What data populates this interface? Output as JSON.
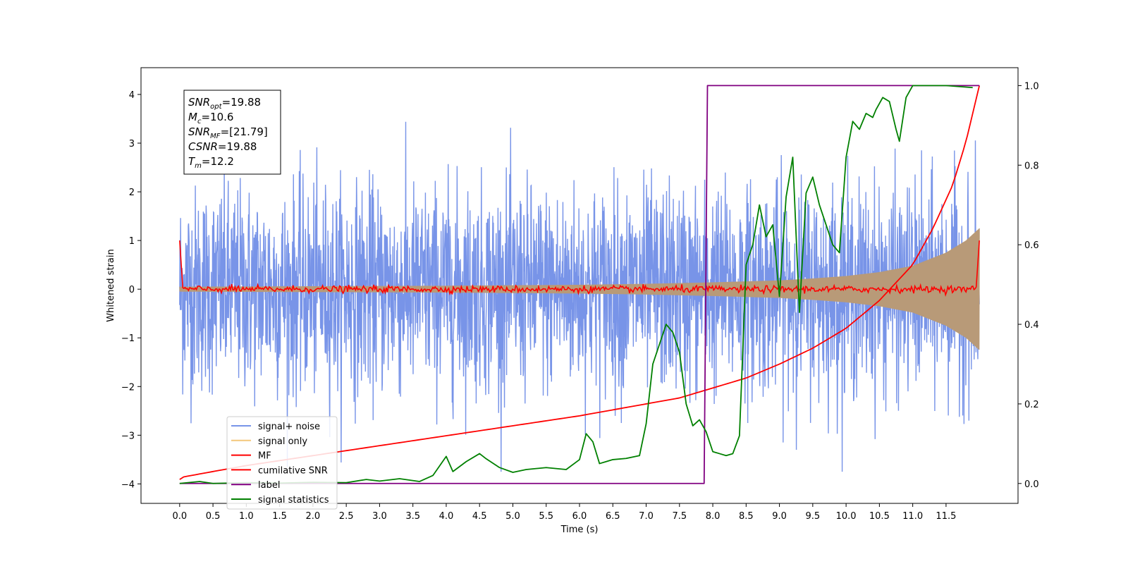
{
  "chart_data": {
    "type": "line",
    "xlabel": "Time (s)",
    "ylabel_left": "Whitened strain",
    "ylabel_right": "",
    "xlim": [
      -0.58,
      12.58
    ],
    "ylim_left": [
      -4.4,
      4.55
    ],
    "ylim_right": [
      -0.05,
      1.045
    ],
    "x_ticks": [
      0.0,
      0.5,
      1.0,
      1.5,
      2.0,
      2.5,
      3.0,
      3.5,
      4.0,
      4.5,
      5.0,
      5.5,
      6.0,
      6.5,
      7.0,
      7.5,
      8.0,
      8.5,
      9.0,
      9.5,
      10.0,
      10.5,
      11.0,
      11.5
    ],
    "x_tick_labels": [
      "0.0",
      "0.5",
      "1.0",
      "1.5",
      "2.0",
      "2.5",
      "3.0",
      "3.5",
      "4.0",
      "4.5",
      "5.0",
      "5.5",
      "6.0",
      "6.5",
      "7.0",
      "7.5",
      "8.0",
      "8.5",
      "9.0",
      "9.5",
      "10.0",
      "10.5",
      "11.0",
      "11.5"
    ],
    "y_left_ticks": [
      -4,
      -3,
      -2,
      -1,
      0,
      1,
      2,
      3,
      4
    ],
    "y_left_tick_labels": [
      "−4",
      "−3",
      "−2",
      "−1",
      "0",
      "1",
      "2",
      "3",
      "4"
    ],
    "y_right_ticks": [
      0.0,
      0.2,
      0.4,
      0.6,
      0.8,
      1.0
    ],
    "y_right_tick_labels": [
      "0.0",
      "0.2",
      "0.4",
      "0.6",
      "0.8",
      "1.0"
    ],
    "grid": false,
    "legend_position": "bottom-left",
    "duration_s": 12.0,
    "signal_noise": {
      "name": "signal+ noise",
      "color": "#7894e8",
      "typical_peak": 3.0,
      "max_peak": 4.2
    },
    "signal_only": {
      "name": "signal only",
      "color": "#f4c77a",
      "envelope_x": [
        0.0,
        2.0,
        4.0,
        6.0,
        7.0,
        8.0,
        9.0,
        9.5,
        10.0,
        10.5,
        11.0,
        11.5,
        11.8,
        12.0
      ],
      "envelope_y": [
        0.05,
        0.06,
        0.07,
        0.09,
        0.11,
        0.14,
        0.18,
        0.22,
        0.27,
        0.35,
        0.48,
        0.75,
        1.0,
        1.25
      ]
    },
    "mf": {
      "name": "MF",
      "color": "#ff0000",
      "start_value": 1.0,
      "end_value": 1.0,
      "noise_amplitude": 0.05
    },
    "cumulative_snr": {
      "name": "cumilative SNR",
      "color": "#ff0000",
      "axis": "right",
      "x": [
        0.0,
        0.01,
        0.5,
        1.0,
        2.0,
        3.0,
        4.0,
        5.0,
        6.0,
        7.0,
        7.5,
        8.0,
        8.5,
        9.0,
        9.5,
        10.0,
        10.5,
        11.0,
        11.3,
        11.6,
        11.8,
        12.0
      ],
      "y": [
        0.01,
        0.015,
        0.03,
        0.045,
        0.07,
        0.095,
        0.12,
        0.145,
        0.17,
        0.2,
        0.215,
        0.24,
        0.265,
        0.3,
        0.34,
        0.39,
        0.46,
        0.55,
        0.64,
        0.75,
        0.86,
        1.0
      ]
    },
    "label": {
      "name": "label",
      "color": "#800080",
      "axis": "right",
      "x": [
        0.0,
        7.87,
        7.92,
        12.0
      ],
      "y": [
        0.0,
        0.0,
        1.0,
        1.0
      ]
    },
    "signal_statistics": {
      "name": "signal statistics",
      "color": "#008000",
      "axis": "right",
      "x": [
        0.0,
        0.3,
        0.5,
        1.0,
        1.5,
        2.0,
        2.5,
        2.8,
        3.0,
        3.3,
        3.6,
        3.8,
        4.0,
        4.1,
        4.3,
        4.5,
        4.6,
        4.8,
        5.0,
        5.2,
        5.5,
        5.8,
        6.0,
        6.1,
        6.2,
        6.3,
        6.4,
        6.5,
        6.7,
        6.9,
        7.0,
        7.1,
        7.2,
        7.3,
        7.4,
        7.5,
        7.6,
        7.7,
        7.8,
        7.9,
        8.0,
        8.1,
        8.2,
        8.3,
        8.4,
        8.5,
        8.6,
        8.7,
        8.8,
        8.9,
        9.0,
        9.1,
        9.2,
        9.3,
        9.4,
        9.5,
        9.6,
        9.7,
        9.8,
        9.9,
        10.0,
        10.1,
        10.2,
        10.3,
        10.4,
        10.45,
        10.55,
        10.65,
        10.75,
        10.8,
        10.9,
        11.0,
        11.2,
        11.5,
        11.9
      ],
      "y": [
        0.0,
        0.005,
        0.0,
        0.002,
        0.001,
        0.003,
        0.002,
        0.01,
        0.006,
        0.012,
        0.005,
        0.02,
        0.068,
        0.03,
        0.055,
        0.075,
        0.062,
        0.04,
        0.028,
        0.035,
        0.04,
        0.035,
        0.06,
        0.125,
        0.105,
        0.05,
        0.055,
        0.06,
        0.063,
        0.07,
        0.15,
        0.3,
        0.35,
        0.4,
        0.38,
        0.33,
        0.2,
        0.145,
        0.16,
        0.13,
        0.08,
        0.075,
        0.07,
        0.075,
        0.12,
        0.55,
        0.6,
        0.7,
        0.62,
        0.65,
        0.47,
        0.72,
        0.82,
        0.43,
        0.73,
        0.77,
        0.7,
        0.65,
        0.6,
        0.58,
        0.82,
        0.91,
        0.89,
        0.93,
        0.92,
        0.94,
        0.97,
        0.96,
        0.89,
        0.86,
        0.97,
        1.0,
        1.0,
        1.0,
        0.995
      ]
    },
    "annotation": {
      "lines": [
        {
          "base": "SNR",
          "sub": "opt",
          "value": "=19.88"
        },
        {
          "base": "M",
          "sub": "c",
          "value": "=10.6"
        },
        {
          "base": "SNR",
          "sub": "MF",
          "value": "=[21.79]"
        },
        {
          "base": "CSNR",
          "sub": "",
          "value": "=19.88"
        },
        {
          "base": "T",
          "sub": "m",
          "value": "=12.2"
        }
      ]
    },
    "legend": [
      {
        "label": "signal+ noise",
        "color": "#7894e8"
      },
      {
        "label": "signal only",
        "color": "#f4c77a"
      },
      {
        "label": "MF",
        "color": "#ff0000"
      },
      {
        "label": "cumilative SNR",
        "color": "#ff0000"
      },
      {
        "label": "label",
        "color": "#800080"
      },
      {
        "label": "signal statistics",
        "color": "#008000"
      }
    ]
  }
}
